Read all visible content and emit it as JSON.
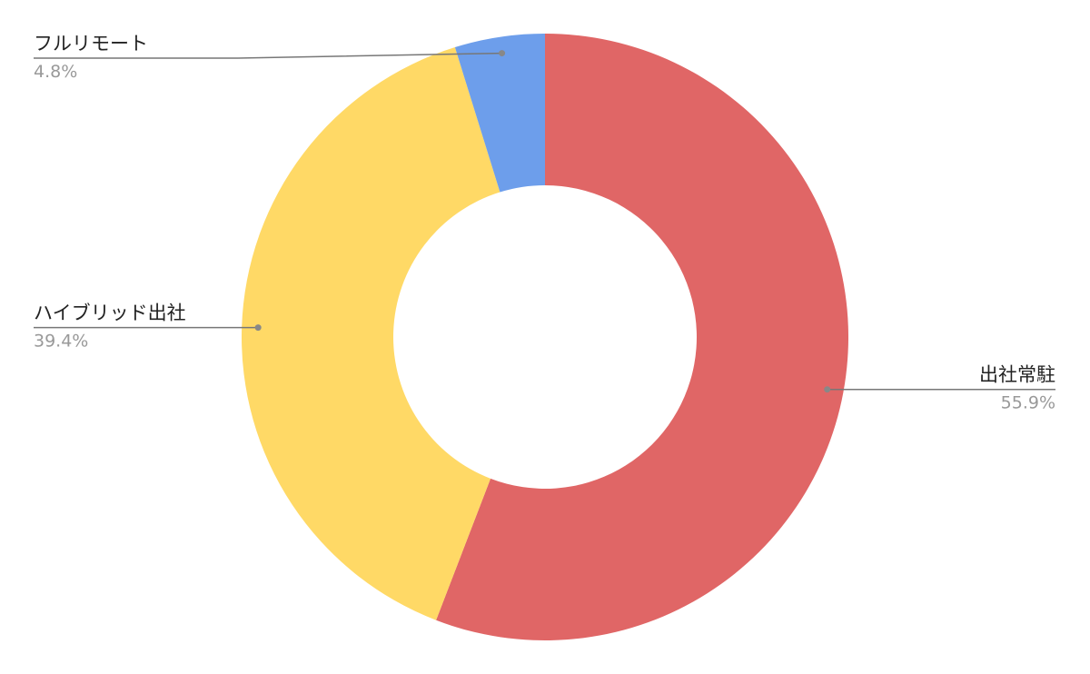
{
  "chart_data": {
    "type": "donut",
    "categories": [
      "出社常駐",
      "ハイブリッド出社",
      "フルリモート"
    ],
    "values": [
      55.9,
      39.4,
      4.8
    ],
    "value_labels": [
      "55.9%",
      "39.4%",
      "4.8%"
    ],
    "colors": [
      "#e06666",
      "#ffd966",
      "#6d9eeb"
    ]
  }
}
